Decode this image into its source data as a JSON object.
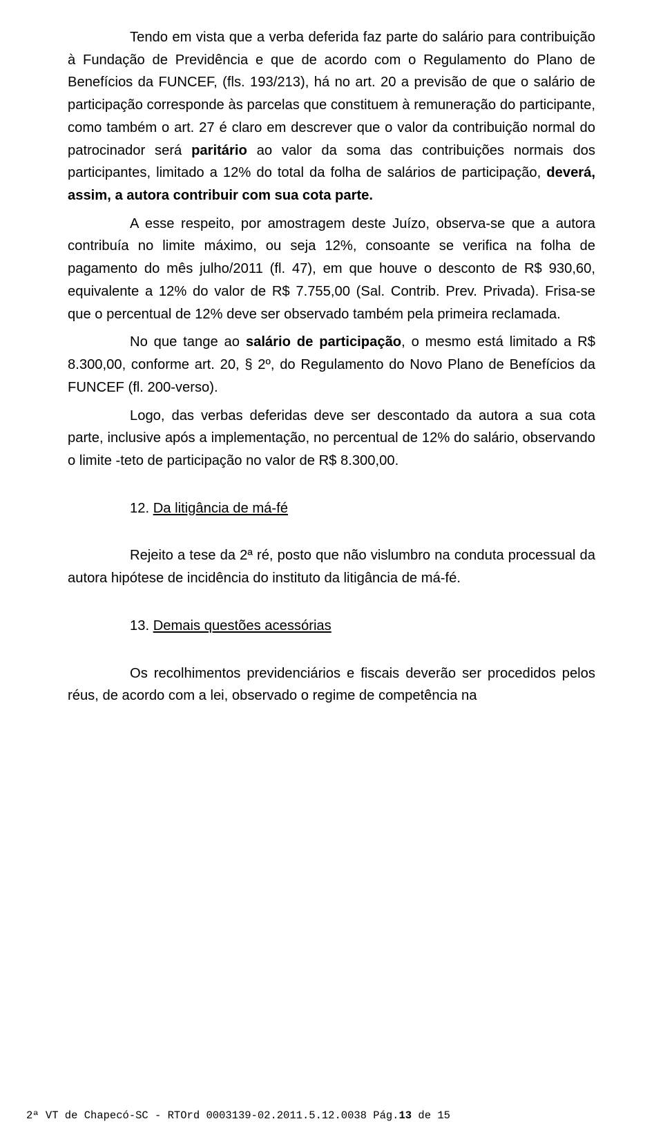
{
  "paragraphs": {
    "p1_a": "Tendo em vista que a verba deferida faz parte do salário para contribuição à Fundação de Previdência e que de acordo com o Regulamento do Plano de Benefícios da FUNCEF, (fls. 193/213), há no art. 20 a previsão de que o salário de participação corresponde às parcelas que constituem à remuneração do participante, como também o art. 27 é claro em descrever que o valor da contribuição normal do patrocinador será ",
    "p1_b": "paritário",
    "p1_c": " ao valor da soma das contribuições normais dos participantes, limitado a 12% do total da folha de salários de participação, ",
    "p1_d": "deverá, assim, a autora contribuir com sua cota parte.",
    "p2": "A esse respeito, por amostragem deste Juízo, observa-se que a autora contribuía no limite máximo, ou seja 12%, consoante se verifica na folha de pagamento do mês julho/2011 (fl. 47), em que houve o desconto de R$ 930,60, equivalente a 12% do valor de R$ 7.755,00 (Sal. Contrib. Prev. Privada). Frisa-se que o percentual de 12% deve ser observado também pela primeira reclamada.",
    "p3_a": "No que tange ao ",
    "p3_b": "salário de participação",
    "p3_c": ", o mesmo está limitado a R$ 8.300,00, conforme art. 20, § 2º, do Regulamento do Novo Plano de Benefícios da FUNCEF (fl. 200-verso).",
    "p4": "Logo, das verbas deferidas deve ser descontado da autora a sua cota parte, inclusive após a implementação, no percentual de 12% do salário, observando o limite -teto de participação no valor de R$ 8.300,00.",
    "p5": "Rejeito a tese da 2ª ré, posto que não vislumbro na conduta processual da autora hipótese de incidência do instituto da litigância de má-fé.",
    "p6": "Os recolhimentos previdenciários e fiscais deverão ser procedidos pelos réus, de acordo com a lei, observado o regime de competência na"
  },
  "sections": {
    "s12_num": "12. ",
    "s12_title": "Da litigância de má-fé",
    "s13_num": "13. ",
    "s13_title": "Demais questões acessórias"
  },
  "footer": {
    "left": "2ª VT de Chapecó-SC - RTOrd 0003139-02.2011.5.12.0038 Pág.",
    "page_current": "13",
    "page_sep": " de ",
    "page_total": "15"
  }
}
